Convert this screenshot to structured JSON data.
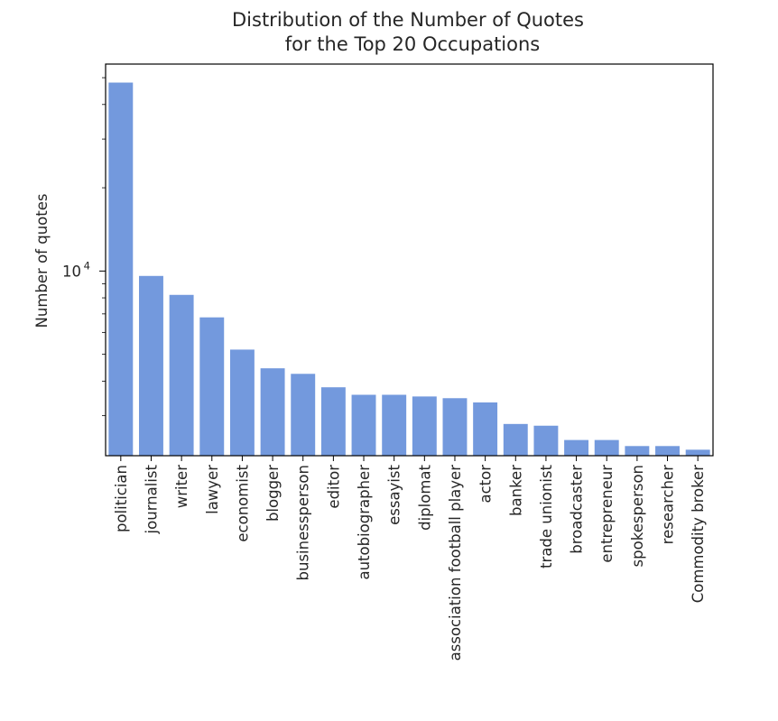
{
  "chart_data": {
    "type": "bar",
    "title_lines": [
      "Distribution of the Number of Quotes",
      "for the Top 20 Occupations"
    ],
    "xlabel": "",
    "ylabel": "Number of quotes",
    "yscale": "log",
    "ylim": [
      2150,
      56000
    ],
    "ytick_labels": [
      {
        "value": 10000,
        "base": "10",
        "exp": "4"
      }
    ],
    "bar_color": "#7399dd",
    "grid": false,
    "categories": [
      "politician",
      "journalist",
      "writer",
      "lawyer",
      "economist",
      "blogger",
      "businessperson",
      "editor",
      "autobiographer",
      "essayist",
      "diplomat",
      "association football player",
      "actor",
      "banker",
      "trade unionist",
      "broadcaster",
      "entrepreneur",
      "spokesperson",
      "researcher",
      "Commodity broker"
    ],
    "values": [
      48000,
      9600,
      8200,
      6800,
      5200,
      4450,
      4250,
      3800,
      3570,
      3570,
      3520,
      3470,
      3350,
      2800,
      2760,
      2450,
      2450,
      2330,
      2330,
      2260
    ]
  }
}
